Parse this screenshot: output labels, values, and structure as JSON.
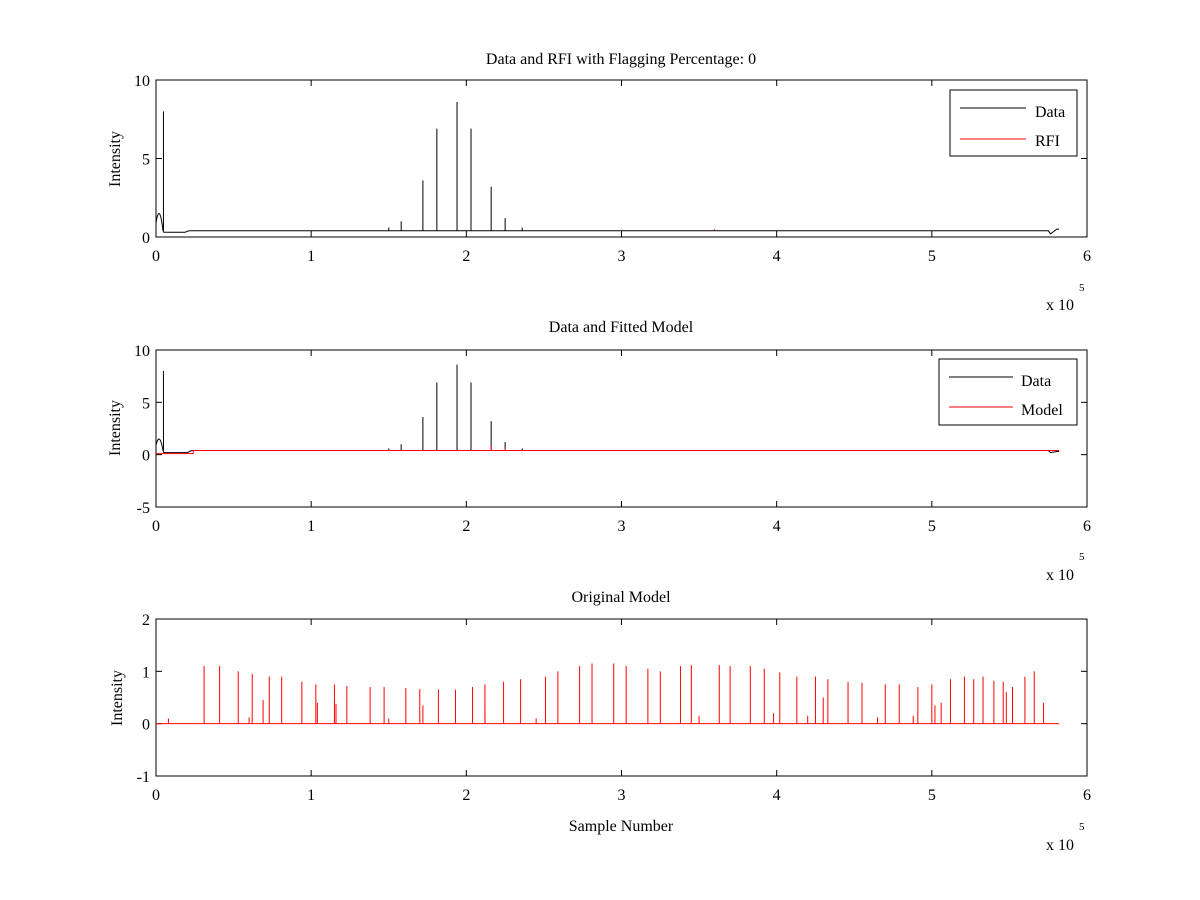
{
  "chart_data": [
    {
      "type": "line",
      "title": "Data and RFI with Flagging Percentage: 0",
      "xlabel": "",
      "ylabel": "Intensity",
      "xlim": [
        0,
        600000
      ],
      "ylim": [
        0,
        10
      ],
      "xticks": [
        0,
        1,
        2,
        3,
        4,
        5,
        6
      ],
      "yticks": [
        0,
        5,
        10
      ],
      "x_exponent_label": "x 10",
      "x_exponent_power": "5",
      "legend": {
        "position": "top-right",
        "entries": [
          "Data",
          "RFI"
        ]
      },
      "series": [
        {
          "name": "Data",
          "color": "#000000",
          "baseline": 0.4,
          "start_bump": {
            "x_end": 4500,
            "peak": 1.4
          },
          "dip_region": {
            "x_start": 5000,
            "x_end": 22000,
            "level": 0.3
          },
          "end_bump": {
            "x_start": 575000,
            "x_end": 582000,
            "level": 0.5
          },
          "x_end": 582000,
          "spikes": [
            [
              4800,
              8.0
            ],
            [
              158000,
              1.0
            ],
            [
              172000,
              3.6
            ],
            [
              181000,
              6.9
            ],
            [
              194000,
              8.6
            ],
            [
              203000,
              6.9
            ],
            [
              216000,
              3.2
            ],
            [
              225000,
              1.2
            ],
            [
              150000,
              0.6
            ],
            [
              236000,
              0.6
            ]
          ]
        },
        {
          "name": "RFI",
          "color": "#ff0000",
          "spikes": [
            [
              360000,
              0.5
            ]
          ]
        }
      ]
    },
    {
      "type": "line",
      "title": "Data and Fitted Model",
      "xlabel": "",
      "ylabel": "Intensity",
      "xlim": [
        0,
        600000
      ],
      "ylim": [
        -5,
        10
      ],
      "xticks": [
        0,
        1,
        2,
        3,
        4,
        5,
        6
      ],
      "yticks": [
        -5,
        0,
        5,
        10
      ],
      "x_exponent_label": "x 10",
      "x_exponent_power": "5",
      "legend": {
        "position": "top-right",
        "entries": [
          "Data",
          "Model"
        ]
      },
      "series": [
        {
          "name": "Data",
          "color": "#000000",
          "baseline": 0.4,
          "start_bump": {
            "x_end": 4500,
            "peak": 1.4
          },
          "dip_region": {
            "x_start": 5000,
            "x_end": 24000,
            "level": 0.2
          },
          "end_bump": {
            "x_start": 575000,
            "x_end": 582000,
            "level": 0.3
          },
          "x_end": 582000,
          "spikes": [
            [
              4800,
              8.0
            ],
            [
              158000,
              1.0
            ],
            [
              172000,
              3.6
            ],
            [
              181000,
              6.9
            ],
            [
              194000,
              8.6
            ],
            [
              203000,
              6.9
            ],
            [
              216000,
              3.2
            ],
            [
              225000,
              1.2
            ],
            [
              150000,
              0.6
            ],
            [
              236000,
              0.6
            ]
          ]
        },
        {
          "name": "Model",
          "color": "#ff0000",
          "baseline": 0.4,
          "start_segment": {
            "x_start": 0,
            "x_end": 24000,
            "level": 0.1
          },
          "x_end": 582000,
          "spikes": [
            [
              216000,
              0.9
            ],
            [
              225000,
              0.7
            ]
          ]
        }
      ]
    },
    {
      "type": "line",
      "title": "Original Model",
      "xlabel": "Sample Number",
      "ylabel": "Intensity",
      "xlim": [
        0,
        600000
      ],
      "ylim": [
        -1,
        2
      ],
      "xticks": [
        0,
        1,
        2,
        3,
        4,
        5,
        6
      ],
      "yticks": [
        -1,
        0,
        1,
        2
      ],
      "x_exponent_label": "x 10",
      "x_exponent_power": "5",
      "series": [
        {
          "name": "Model",
          "color": "#ff0000",
          "baseline": 0.0,
          "x_end": 582000,
          "spikes": [
            [
              31000,
              1.1
            ],
            [
              41000,
              1.1
            ],
            [
              53000,
              1.0
            ],
            [
              62000,
              0.95
            ],
            [
              73000,
              0.9
            ],
            [
              81000,
              0.9
            ],
            [
              94000,
              0.8
            ],
            [
              103000,
              0.75
            ],
            [
              115000,
              0.75
            ],
            [
              123000,
              0.72
            ],
            [
              138000,
              0.7
            ],
            [
              147000,
              0.7
            ],
            [
              161000,
              0.68
            ],
            [
              170000,
              0.66
            ],
            [
              182000,
              0.65
            ],
            [
              193000,
              0.65
            ],
            [
              204000,
              0.7
            ],
            [
              212000,
              0.75
            ],
            [
              224000,
              0.8
            ],
            [
              235000,
              0.85
            ],
            [
              251000,
              0.9
            ],
            [
              259000,
              1.0
            ],
            [
              273000,
              1.1
            ],
            [
              281000,
              1.15
            ],
            [
              295000,
              1.15
            ],
            [
              303000,
              1.1
            ],
            [
              317000,
              1.05
            ],
            [
              325000,
              1.0
            ],
            [
              338000,
              1.1
            ],
            [
              345000,
              1.12
            ],
            [
              363000,
              1.12
            ],
            [
              370000,
              1.1
            ],
            [
              383000,
              1.1
            ],
            [
              392000,
              1.05
            ],
            [
              402000,
              0.98
            ],
            [
              413000,
              0.9
            ],
            [
              425000,
              0.9
            ],
            [
              433000,
              0.85
            ],
            [
              446000,
              0.8
            ],
            [
              455000,
              0.78
            ],
            [
              470000,
              0.75
            ],
            [
              479000,
              0.75
            ],
            [
              491000,
              0.7
            ],
            [
              500000,
              0.75
            ],
            [
              512000,
              0.85
            ],
            [
              521000,
              0.9
            ],
            [
              527000,
              0.85
            ],
            [
              533000,
              0.9
            ],
            [
              540000,
              0.82
            ],
            [
              546000,
              0.8
            ],
            [
              552000,
              0.7
            ],
            [
              560000,
              0.9
            ],
            [
              566000,
              1.0
            ],
            [
              572000,
              0.4
            ],
            [
              69000,
              0.45
            ],
            [
              104000,
              0.4
            ],
            [
              116000,
              0.38
            ],
            [
              172000,
              0.35
            ],
            [
              212000,
              0.35
            ],
            [
              398000,
              0.2
            ],
            [
              430000,
              0.5
            ],
            [
              502000,
              0.35
            ],
            [
              506000,
              0.4
            ],
            [
              548000,
              0.6
            ],
            [
              8000,
              0.1
            ],
            [
              60000,
              0.12
            ],
            [
              150000,
              0.1
            ],
            [
              245000,
              0.1
            ],
            [
              350000,
              0.15
            ],
            [
              420000,
              0.15
            ],
            [
              465000,
              0.12
            ],
            [
              488000,
              0.15
            ]
          ]
        }
      ]
    }
  ]
}
